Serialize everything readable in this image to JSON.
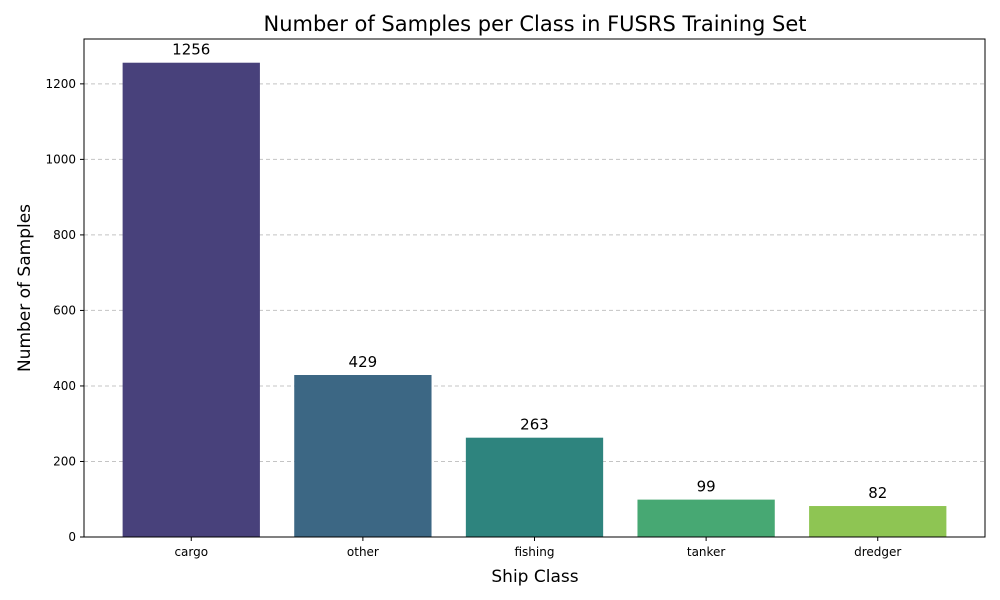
{
  "chart_data": {
    "type": "bar",
    "title": "Number of Samples per Class in FUSRS Training Set",
    "xlabel": "Ship Class",
    "ylabel": "Number of Samples",
    "categories": [
      "cargo",
      "other",
      "fishing",
      "tanker",
      "dredger"
    ],
    "values": [
      1256,
      429,
      263,
      99,
      82
    ],
    "data_labels": [
      "1256",
      "429",
      "263",
      "99",
      "82"
    ],
    "colors": [
      "#48417b",
      "#3c6784",
      "#2e847e",
      "#47a873",
      "#8ec553"
    ],
    "ylim": [
      0,
      1318.8
    ],
    "yticks": [
      0,
      200,
      400,
      600,
      800,
      1000,
      1200
    ],
    "ytick_labels": [
      "0",
      "200",
      "400",
      "600",
      "800",
      "1000",
      "1200"
    ],
    "grid": "horizontal dashed",
    "legend": "none"
  }
}
